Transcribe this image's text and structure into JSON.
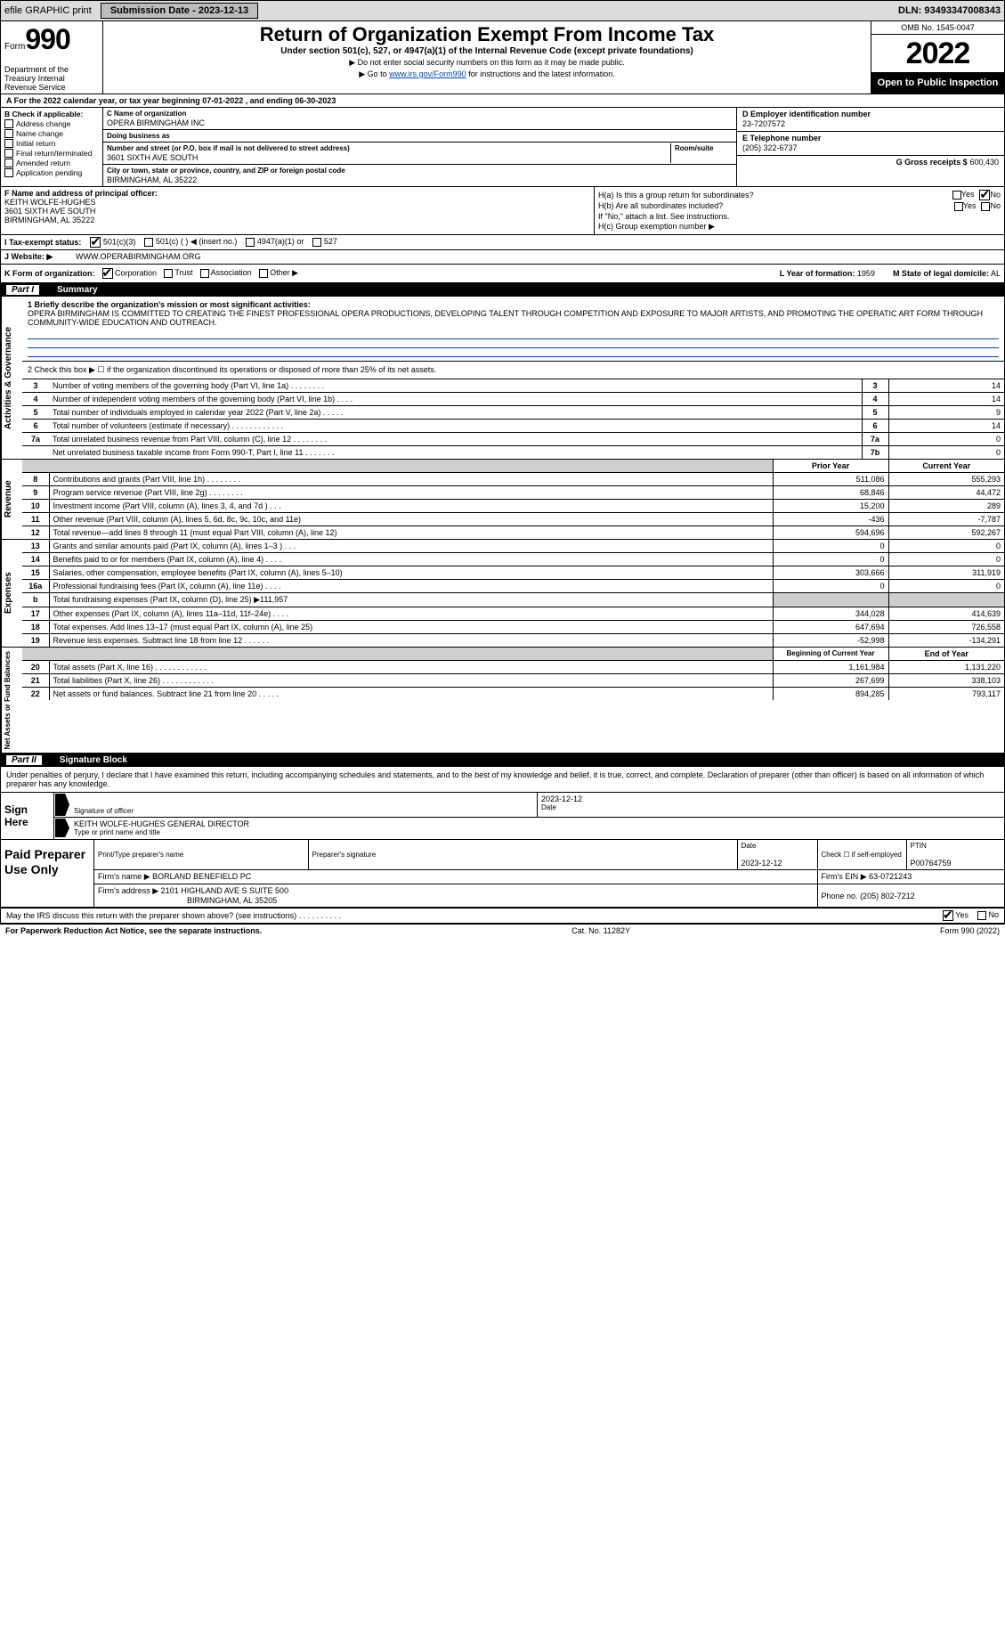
{
  "topbar": {
    "efile": "efile GRAPHIC print",
    "submission_label": "Submission Date - 2023-12-13",
    "dln": "DLN: 93493347008343"
  },
  "header": {
    "form_word": "Form",
    "form_number": "990",
    "dept": "Department of the Treasury Internal Revenue Service",
    "title": "Return of Organization Exempt From Income Tax",
    "subtitle": "Under section 501(c), 527, or 4947(a)(1) of the Internal Revenue Code (except private foundations)",
    "note1": "▶ Do not enter social security numbers on this form as it may be made public.",
    "note2_pre": "▶ Go to ",
    "note2_link": "www.irs.gov/Form990",
    "note2_post": " for instructions and the latest information.",
    "omb": "OMB No. 1545-0047",
    "year": "2022",
    "open": "Open to Public Inspection"
  },
  "period": "A For the 2022 calendar year, or tax year beginning 07-01-2022     , and ending 06-30-2023",
  "b": {
    "label": "B Check if applicable:",
    "opts": [
      "Address change",
      "Name change",
      "Initial return",
      "Final return/terminated",
      "Amended return",
      "Application pending"
    ]
  },
  "c": {
    "name_label": "C Name of organization",
    "name": "OPERA BIRMINGHAM INC",
    "dba_label": "Doing business as",
    "dba": "",
    "street_label": "Number and street (or P.O. box if mail is not delivered to street address)",
    "room_label": "Room/suite",
    "street": "3601 SIXTH AVE SOUTH",
    "city_label": "City or town, state or province, country, and ZIP or foreign postal code",
    "city": "BIRMINGHAM, AL  35222"
  },
  "d": {
    "label": "D Employer identification number",
    "value": "23-7207572"
  },
  "e": {
    "label": "E Telephone number",
    "value": "(205) 322-6737"
  },
  "g": {
    "label": "G Gross receipts $",
    "value": "600,430"
  },
  "f": {
    "label": "F  Name and address of principal officer:",
    "name": "KEITH WOLFE-HUGHES",
    "addr1": "3601 SIXTH AVE SOUTH",
    "addr2": "BIRMINGHAM, AL  35222"
  },
  "h": {
    "a": "H(a)  Is this a group return for subordinates?",
    "b": "H(b)  Are all subordinates included?",
    "b_note": "If \"No,\" attach a list. See instructions.",
    "c": "H(c)  Group exemption number ▶",
    "yes": "Yes",
    "no": "No"
  },
  "i": {
    "label": "I  Tax-exempt status:",
    "o1": "501(c)(3)",
    "o2": "501(c) (   ) ◀ (insert no.)",
    "o3": "4947(a)(1) or",
    "o4": "527"
  },
  "j": {
    "label": "J  Website: ▶",
    "value": "WWW.OPERABIRMINGHAM.ORG"
  },
  "k": {
    "label": "K Form of organization:",
    "opts": [
      "Corporation",
      "Trust",
      "Association",
      "Other ▶"
    ],
    "l_label": "L Year of formation:",
    "l_val": "1959",
    "m_label": "M State of legal domicile:",
    "m_val": "AL"
  },
  "part1": {
    "num": "Part I",
    "title": "Summary"
  },
  "mission": {
    "q": "1  Briefly describe the organization's mission or most significant activities:",
    "text": "OPERA BIRMINGHAM IS COMMITTED TO CREATING THE FINEST PROFESSIONAL OPERA PRODUCTIONS, DEVELOPING TALENT THROUGH COMPETITION AND EXPOSURE TO MAJOR ARTISTS, AND PROMOTING THE OPERATIC ART FORM THROUGH COMMUNITY-WIDE EDUCATION AND OUTREACH."
  },
  "gov": {
    "tab": "Activities & Governance",
    "q2": "2    Check this box ▶ ☐  if the organization discontinued its operations or disposed of more than 25% of its net assets.",
    "rows": [
      {
        "n": "3",
        "d": "Number of voting members of the governing body (Part VI, line 1a)   .    .    .    .    .    .    .    .",
        "b": "3",
        "v": "14"
      },
      {
        "n": "4",
        "d": "Number of independent voting members of the governing body (Part VI, line 1b)   .    .    .    .",
        "b": "4",
        "v": "14"
      },
      {
        "n": "5",
        "d": "Total number of individuals employed in calendar year 2022 (Part V, line 2a)   .    .    .    .    .",
        "b": "5",
        "v": "9"
      },
      {
        "n": "6",
        "d": "Total number of volunteers (estimate if necessary)   .    .    .    .    .    .    .    .    .    .    .    .",
        "b": "6",
        "v": "14"
      },
      {
        "n": "7a",
        "d": "Total unrelated business revenue from Part VIII, column (C), line 12   .    .    .    .    .    .    .    .",
        "b": "7a",
        "v": "0"
      },
      {
        "n": "",
        "d": "Net unrelated business taxable income from Form 990-T, Part I, line 11   .    .    .    .    .    .    .",
        "b": "7b",
        "v": "0"
      }
    ]
  },
  "rev": {
    "tab": "Revenue",
    "h1": "Prior Year",
    "h2": "Current Year",
    "rows": [
      {
        "n": "8",
        "d": "Contributions and grants (Part VIII, line 1h)   .    .    .    .    .    .    .    .",
        "p": "511,086",
        "c": "555,293"
      },
      {
        "n": "9",
        "d": "Program service revenue (Part VIII, line 2g)   .    .    .    .    .    .    .    .",
        "p": "68,846",
        "c": "44,472"
      },
      {
        "n": "10",
        "d": "Investment income (Part VIII, column (A), lines 3, 4, and 7d )   .    .    .",
        "p": "15,200",
        "c": "289"
      },
      {
        "n": "11",
        "d": "Other revenue (Part VIII, column (A), lines 5, 6d, 8c, 9c, 10c, and 11e)",
        "p": "-436",
        "c": "-7,787"
      },
      {
        "n": "12",
        "d": "Total revenue—add lines 8 through 11 (must equal Part VIII, column (A), line 12)",
        "p": "594,696",
        "c": "592,267"
      }
    ]
  },
  "exp": {
    "tab": "Expenses",
    "rows": [
      {
        "n": "13",
        "d": "Grants and similar amounts paid (Part IX, column (A), lines 1–3 )   .    .    .",
        "p": "0",
        "c": "0"
      },
      {
        "n": "14",
        "d": "Benefits paid to or for members (Part IX, column (A), line 4)   .    .    .    .",
        "p": "0",
        "c": "0"
      },
      {
        "n": "15",
        "d": "Salaries, other compensation, employee benefits (Part IX, column (A), lines 5–10)",
        "p": "303,666",
        "c": "311,919"
      },
      {
        "n": "16a",
        "d": "Professional fundraising fees (Part IX, column (A), line 11e)   .    .    .    .",
        "p": "0",
        "c": "0"
      },
      {
        "n": "b",
        "d": "Total fundraising expenses (Part IX, column (D), line 25) ▶111,957",
        "p": "shade",
        "c": "shade"
      },
      {
        "n": "17",
        "d": "Other expenses (Part IX, column (A), lines 11a–11d, 11f–24e)   .    .    .    .",
        "p": "344,028",
        "c": "414,639"
      },
      {
        "n": "18",
        "d": "Total expenses. Add lines 13–17 (must equal Part IX, column (A), line 25)",
        "p": "647,694",
        "c": "726,558"
      },
      {
        "n": "19",
        "d": "Revenue less expenses. Subtract line 18 from line 12   .    .    .    .    .    .",
        "p": "-52,998",
        "c": "-134,291"
      }
    ]
  },
  "net": {
    "tab": "Net Assets or Fund Balances",
    "h1": "Beginning of Current Year",
    "h2": "End of Year",
    "rows": [
      {
        "n": "20",
        "d": "Total assets (Part X, line 16)   .    .    .    .    .    .    .    .    .    .    .    .",
        "p": "1,161,984",
        "c": "1,131,220"
      },
      {
        "n": "21",
        "d": "Total liabilities (Part X, line 26)   .    .    .    .    .    .    .    .    .    .    .    .",
        "p": "267,699",
        "c": "338,103"
      },
      {
        "n": "22",
        "d": "Net assets or fund balances. Subtract line 21 from line 20   .    .    .    .    .",
        "p": "894,285",
        "c": "793,117"
      }
    ]
  },
  "part2": {
    "num": "Part II",
    "title": "Signature Block"
  },
  "sig_intro": "Under penalties of perjury, I declare that I have examined this return, including accompanying schedules and statements, and to the best of my knowledge and belief, it is true, correct, and complete. Declaration of preparer (other than officer) is based on all information of which preparer has any knowledge.",
  "sign": {
    "side": "Sign Here",
    "sig_label": "Signature of officer",
    "date": "2023-12-12",
    "date_label": "Date",
    "name": "KEITH WOLFE-HUGHES  GENERAL DIRECTOR",
    "name_label": "Type or print name and title"
  },
  "prep": {
    "side": "Paid Preparer Use Only",
    "h1": "Print/Type preparer's name",
    "h2": "Preparer's signature",
    "h3": "Date",
    "h4": "Check ☐ if self-employed",
    "h5": "PTIN",
    "date": "2023-12-12",
    "ptin": "P00764759",
    "firm_label": "Firm's name      ▶",
    "firm": "BORLAND BENEFIELD PC",
    "ein_label": "Firm's EIN ▶",
    "ein": "63-0721243",
    "addr_label": "Firm's address ▶",
    "addr": "2101 HIGHLAND AVE S SUITE 500",
    "addr2": "BIRMINGHAM, AL  35205",
    "phone_label": "Phone no.",
    "phone": "(205) 802-7212"
  },
  "footer_q": "May the IRS discuss this return with the preparer shown above? (see instructions)   .    .    .    .    .    .    .    .    .    .",
  "bottom": {
    "l": "For Paperwork Reduction Act Notice, see the separate instructions.",
    "c": "Cat. No. 11282Y",
    "r": "Form 990 (2022)"
  }
}
